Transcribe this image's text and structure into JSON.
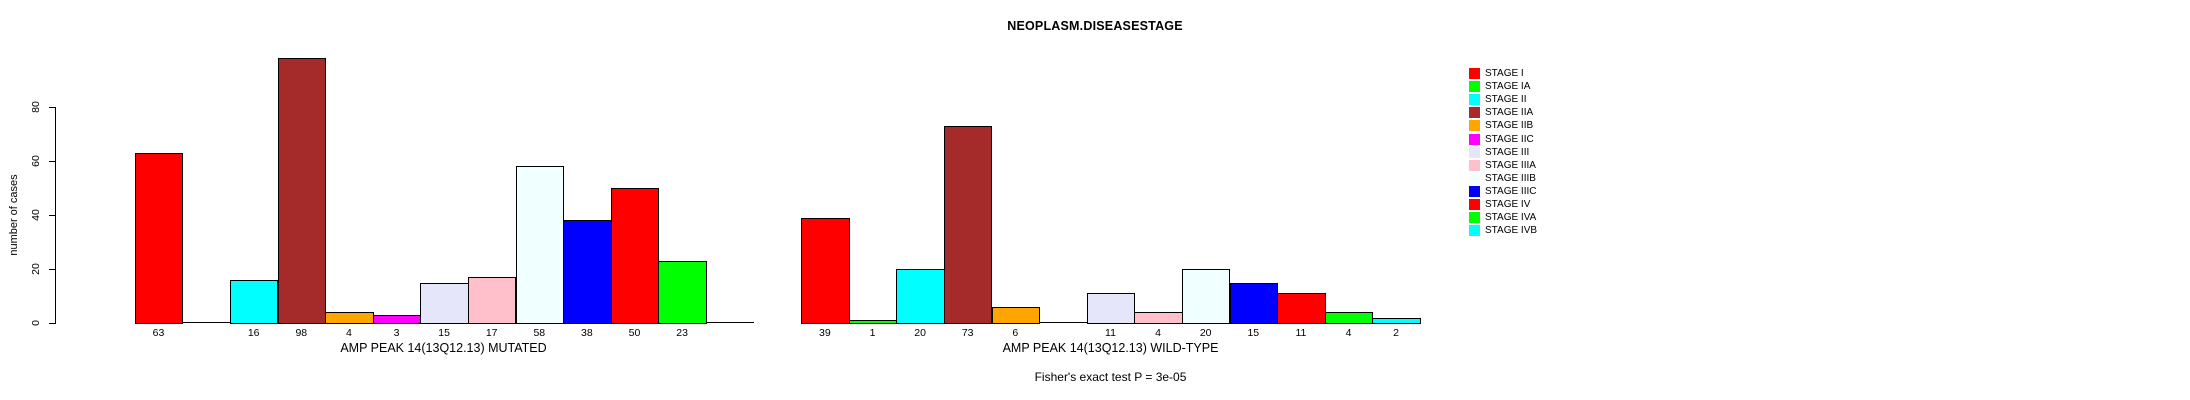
{
  "chart_data": {
    "type": "bar",
    "title": "NEOPLASM.DISEASESTAGE",
    "ylabel": "number of cases",
    "yticks": [
      0,
      20,
      40,
      60,
      80
    ],
    "ylim": [
      0,
      98
    ],
    "grid": false,
    "legend_position": "right",
    "categories": [
      "STAGE I",
      "STAGE IA",
      "STAGE II",
      "STAGE IIA",
      "STAGE IIB",
      "STAGE IIC",
      "STAGE III",
      "STAGE IIIA",
      "STAGE IIIB",
      "STAGE IIIC",
      "STAGE IV",
      "STAGE IVA",
      "STAGE IVB"
    ],
    "colors": [
      "#FF0000",
      "#00FF00",
      "#00FFFF",
      "#A52A2A",
      "#FFA500",
      "#FF00FF",
      "#E6E6FA",
      "#FFC0CB",
      "#F0FFFF",
      "#0000FF",
      "#FF0000",
      "#00FF00",
      "#00FFFF"
    ],
    "series": [
      {
        "name": "AMP PEAK 14(13Q12.13) MUTATED",
        "values": [
          63,
          null,
          16,
          98,
          4,
          3,
          15,
          17,
          58,
          38,
          50,
          23,
          null
        ]
      },
      {
        "name": "AMP PEAK 14(13Q12.13) WILD-TYPE",
        "values": [
          39,
          1,
          20,
          73,
          6,
          null,
          11,
          4,
          20,
          15,
          11,
          4,
          2
        ]
      }
    ],
    "annotation": "Fisher's exact test P = 3e-05",
    "axis_color": "#000000",
    "background": "#FFFFFF"
  }
}
